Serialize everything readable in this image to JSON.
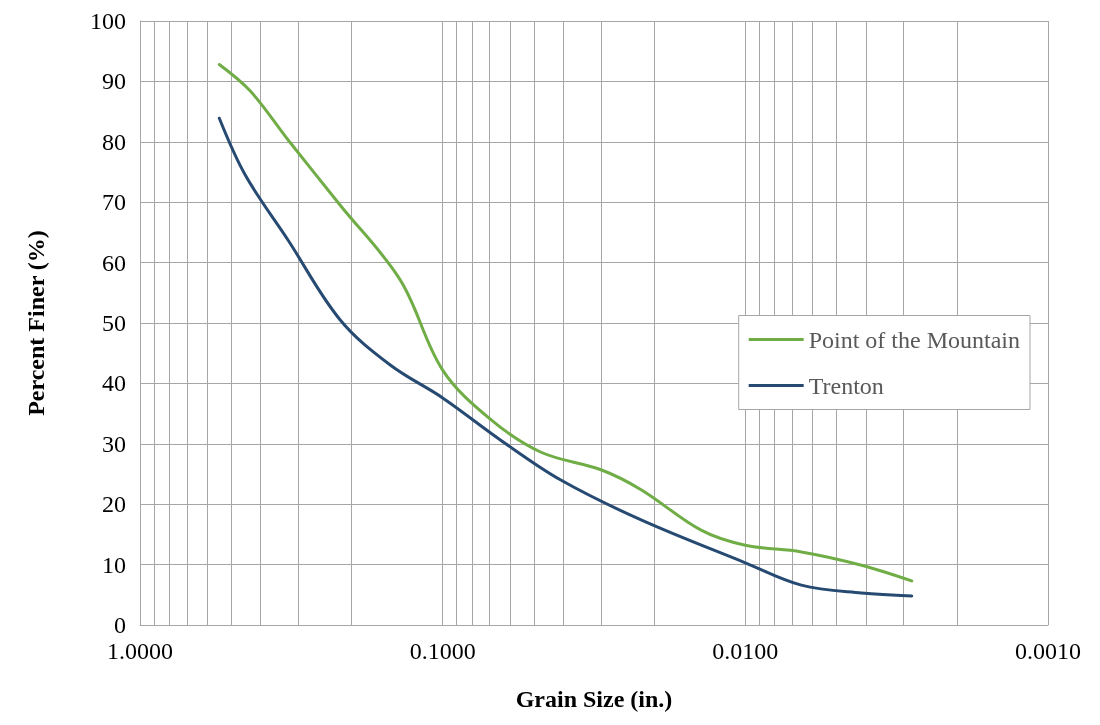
{
  "chart_data": {
    "type": "line",
    "xlabel": "Grain Size (in.)",
    "ylabel": "Percent Finer (%)",
    "log": "x",
    "xlim": [
      1,
      0.001
    ],
    "xticks": [
      {
        "value": 1,
        "label": "1.0000"
      },
      {
        "value": 0.1,
        "label": "0.1000"
      },
      {
        "value": 0.01,
        "label": "0.0100"
      },
      {
        "value": 0.001,
        "label": "0.0010"
      }
    ],
    "ylim": [
      0,
      100
    ],
    "yticks": [
      0,
      10,
      20,
      30,
      40,
      50,
      60,
      70,
      80,
      90,
      100
    ],
    "grid": true,
    "legend": "right",
    "marker": "none",
    "line_style": "solid",
    "series": [
      {
        "name": "Point of the Mountain",
        "color": "#70ad47",
        "x": [
          0.547,
          0.432,
          0.324,
          0.218,
          0.138,
          0.1,
          0.0693,
          0.0473,
          0.03,
          0.0221,
          0.014,
          0.01,
          0.00653,
          0.00413,
          0.00282
        ],
        "values": [
          92.8,
          88.4,
          80.3,
          69.5,
          57.1,
          42.2,
          34,
          28.6,
          25.7,
          22.4,
          15.7,
          13.2,
          12.1,
          9.9,
          7.3
        ]
      },
      {
        "name": "Trenton",
        "color": "#264a72",
        "x": [
          0.547,
          0.449,
          0.324,
          0.218,
          0.1486,
          0.1,
          0.0643,
          0.0407,
          0.0221,
          0.01,
          0.00653,
          0.00413,
          0.00282
        ],
        "values": [
          83.9,
          74.5,
          63.7,
          50.5,
          43,
          37.6,
          30.6,
          24,
          17.4,
          10.3,
          6.6,
          5.3,
          4.8
        ]
      }
    ]
  }
}
